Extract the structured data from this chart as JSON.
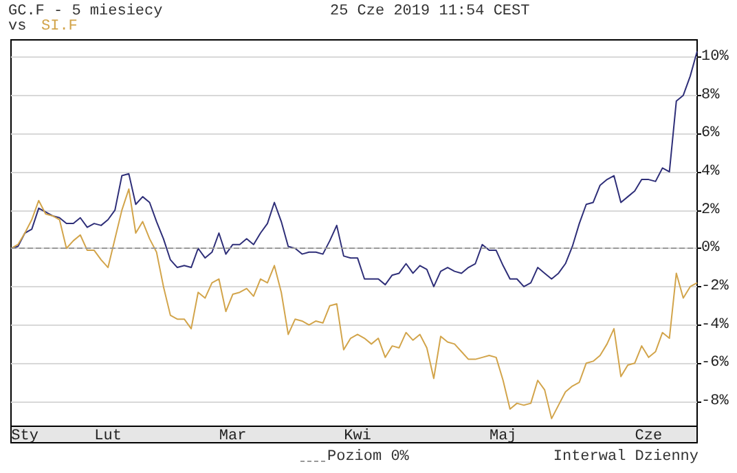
{
  "chart_data": {
    "type": "line",
    "title": "GC.F - 5 miesiecy",
    "subtitle": "vs",
    "annotations": [
      "25 Cze 2019 11:54 CEST",
      "Interwal Dzienny"
    ],
    "categories": [
      null,
      null,
      "Sty",
      null,
      null,
      null,
      null,
      null,
      null,
      null,
      null,
      null,
      null,
      null,
      "Lut",
      null,
      null,
      null,
      null,
      null,
      null,
      null,
      null,
      null,
      null,
      null,
      null,
      null,
      null,
      null,
      null,
      null,
      "Mar",
      null,
      null,
      null,
      null,
      null,
      null,
      null,
      null,
      null,
      null,
      null,
      null,
      null,
      null,
      null,
      null,
      null,
      "Kwi",
      null,
      null,
      null,
      null,
      null,
      null,
      null,
      null,
      null,
      null,
      null,
      null,
      null,
      null,
      null,
      null,
      null,
      null,
      null,
      null,
      "Maj",
      null,
      null,
      null,
      null,
      null,
      null,
      null,
      null,
      null,
      null,
      null,
      null,
      null,
      null,
      null,
      null,
      null,
      null,
      null,
      null,
      "Cze",
      null,
      null,
      null,
      null,
      null,
      null,
      null
    ],
    "ylim": [
      -9.3,
      10.9
    ],
    "yticks": [
      {
        "value": -8,
        "label": "-8%"
      },
      {
        "value": -6,
        "label": "-6%"
      },
      {
        "value": -4,
        "label": "-4%"
      },
      {
        "value": -2,
        "label": "-2%"
      },
      {
        "value": 0,
        "label": "0%"
      },
      {
        "value": 2,
        "label": "2%"
      },
      {
        "value": 4,
        "label": "4%"
      },
      {
        "value": 6,
        "label": "6%"
      },
      {
        "value": 8,
        "label": "8%"
      },
      {
        "value": 10,
        "label": "10%"
      }
    ],
    "grid": "y",
    "marker": "none",
    "ref_lines": [
      {
        "axis": "y",
        "value": 0,
        "label": "Poziom 0%",
        "color": "#999999",
        "line_style": "dashed"
      }
    ],
    "series": [
      {
        "color": "#2e2e78",
        "values": [
          0,
          0.1,
          0.8,
          1.0,
          2.1,
          1.9,
          1.7,
          1.6,
          1.3,
          1.3,
          1.6,
          1.1,
          1.3,
          1.2,
          1.5,
          2.0,
          3.8,
          3.9,
          2.3,
          2.7,
          2.4,
          1.4,
          0.5,
          -0.6,
          -1.0,
          -0.9,
          -1.0,
          0,
          -0.5,
          -0.2,
          0.8,
          -0.3,
          0.2,
          0.2,
          0.5,
          0.2,
          0.8,
          1.3,
          2.4,
          1.4,
          0.1,
          0,
          -0.3,
          -0.2,
          -0.2,
          -0.3,
          0.4,
          1.2,
          -0.4,
          -0.5,
          -0.5,
          -1.6,
          -1.6,
          -1.6,
          -1.9,
          -1.4,
          -1.3,
          -0.8,
          -1.3,
          -0.9,
          -1.1,
          -2.0,
          -1.2,
          -1.0,
          -1.2,
          -1.3,
          -1.0,
          -0.8,
          0.2,
          -0.1,
          -0.1,
          -0.9,
          -1.6,
          -1.6,
          -2.0,
          -1.8,
          -1.0,
          -1.3,
          -1.6,
          -1.3,
          -0.8,
          0.1,
          1.3,
          2.3,
          2.4,
          3.3,
          3.6,
          3.8,
          2.4,
          2.7,
          3.0,
          3.6,
          3.6,
          3.5,
          4.2,
          4.0,
          7.7,
          8.0,
          9.0,
          10.3
        ]
      },
      {
        "name": "SI.F",
        "color": "#d2a44a",
        "values": [
          0,
          0.2,
          0.8,
          1.5,
          2.5,
          1.8,
          1.7,
          1.5,
          0,
          0.4,
          0.7,
          -0.1,
          -0.1,
          -0.6,
          -1.0,
          0.5,
          2.0,
          3.1,
          0.8,
          1.4,
          0.5,
          -0.2,
          -2.0,
          -3.5,
          -3.7,
          -3.7,
          -4.2,
          -2.3,
          -2.6,
          -1.8,
          -1.6,
          -3.3,
          -2.4,
          -2.3,
          -2.1,
          -2.5,
          -1.6,
          -1.8,
          -0.9,
          -2.3,
          -4.5,
          -3.7,
          -3.8,
          -4.0,
          -3.8,
          -3.9,
          -3.0,
          -2.9,
          -5.3,
          -4.7,
          -4.5,
          -4.7,
          -5.0,
          -4.7,
          -5.7,
          -5.1,
          -5.2,
          -4.4,
          -4.8,
          -4.5,
          -5.2,
          -6.8,
          -4.6,
          -4.9,
          -5.0,
          -5.4,
          -5.8,
          -5.8,
          -5.7,
          -5.6,
          -5.7,
          -6.9,
          -8.4,
          -8.1,
          -8.2,
          -8.1,
          -6.9,
          -7.4,
          -8.9,
          -8.2,
          -7.5,
          -7.2,
          -7.0,
          -6.0,
          -5.9,
          -5.6,
          -5.0,
          -4.2,
          -6.7,
          -6.1,
          -6.0,
          -5.1,
          -5.7,
          -5.4,
          -4.4,
          -4.7,
          -1.3,
          -2.6,
          -2.0,
          -1.8
        ]
      }
    ]
  }
}
